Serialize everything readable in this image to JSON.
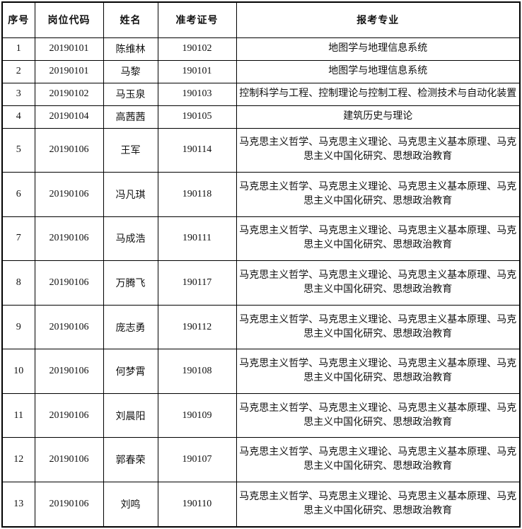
{
  "colors": {
    "border": "#000000",
    "text": "#111111",
    "background": "#ffffff"
  },
  "table": {
    "columns": [
      {
        "key": "no",
        "label": "序号"
      },
      {
        "key": "code",
        "label": "岗位代码"
      },
      {
        "key": "name",
        "label": "姓名"
      },
      {
        "key": "ticket",
        "label": "准考证号"
      },
      {
        "key": "major",
        "label": "报考专业"
      }
    ],
    "rows": [
      {
        "no": "1",
        "code": "20190101",
        "name": "陈维林",
        "ticket": "190102",
        "major": "地图学与地理信息系统"
      },
      {
        "no": "2",
        "code": "20190101",
        "name": "马黎",
        "ticket": "190101",
        "major": "地图学与地理信息系统"
      },
      {
        "no": "3",
        "code": "20190102",
        "name": "马玉泉",
        "ticket": "190103",
        "major": "控制科学与工程、控制理论与控制工程、检测技术与自动化装置"
      },
      {
        "no": "4",
        "code": "20190104",
        "name": "高茜茜",
        "ticket": "190105",
        "major": "建筑历史与理论"
      },
      {
        "no": "5",
        "code": "20190106",
        "name": "王军",
        "ticket": "190114",
        "major": "马克思主义哲学、马克思主义理论、马克思主义基本原理、马克思主义中国化研究、思想政治教育"
      },
      {
        "no": "6",
        "code": "20190106",
        "name": "冯凡琪",
        "ticket": "190118",
        "major": "马克思主义哲学、马克思主义理论、马克思主义基本原理、马克思主义中国化研究、思想政治教育"
      },
      {
        "no": "7",
        "code": "20190106",
        "name": "马成浩",
        "ticket": "190111",
        "major": "马克思主义哲学、马克思主义理论、马克思主义基本原理、马克思主义中国化研究、思想政治教育"
      },
      {
        "no": "8",
        "code": "20190106",
        "name": "万腾飞",
        "ticket": "190117",
        "major": "马克思主义哲学、马克思主义理论、马克思主义基本原理、马克思主义中国化研究、思想政治教育"
      },
      {
        "no": "9",
        "code": "20190106",
        "name": "庞志勇",
        "ticket": "190112",
        "major": "马克思主义哲学、马克思主义理论、马克思主义基本原理、马克思主义中国化研究、思想政治教育"
      },
      {
        "no": "10",
        "code": "20190106",
        "name": "何梦霄",
        "ticket": "190108",
        "major": "马克思主义哲学、马克思主义理论、马克思主义基本原理、马克思主义中国化研究、思想政治教育"
      },
      {
        "no": "11",
        "code": "20190106",
        "name": "刘晨阳",
        "ticket": "190109",
        "major": "马克思主义哲学、马克思主义理论、马克思主义基本原理、马克思主义中国化研究、思想政治教育"
      },
      {
        "no": "12",
        "code": "20190106",
        "name": "郭春荣",
        "ticket": "190107",
        "major": "马克思主义哲学、马克思主义理论、马克思主义基本原理、马克思主义中国化研究、思想政治教育"
      },
      {
        "no": "13",
        "code": "20190106",
        "name": "刘鸣",
        "ticket": "190110",
        "major": "马克思主义哲学、马克思主义理论、马克思主义基本原理、马克思主义中国化研究、思想政治教育"
      }
    ]
  }
}
